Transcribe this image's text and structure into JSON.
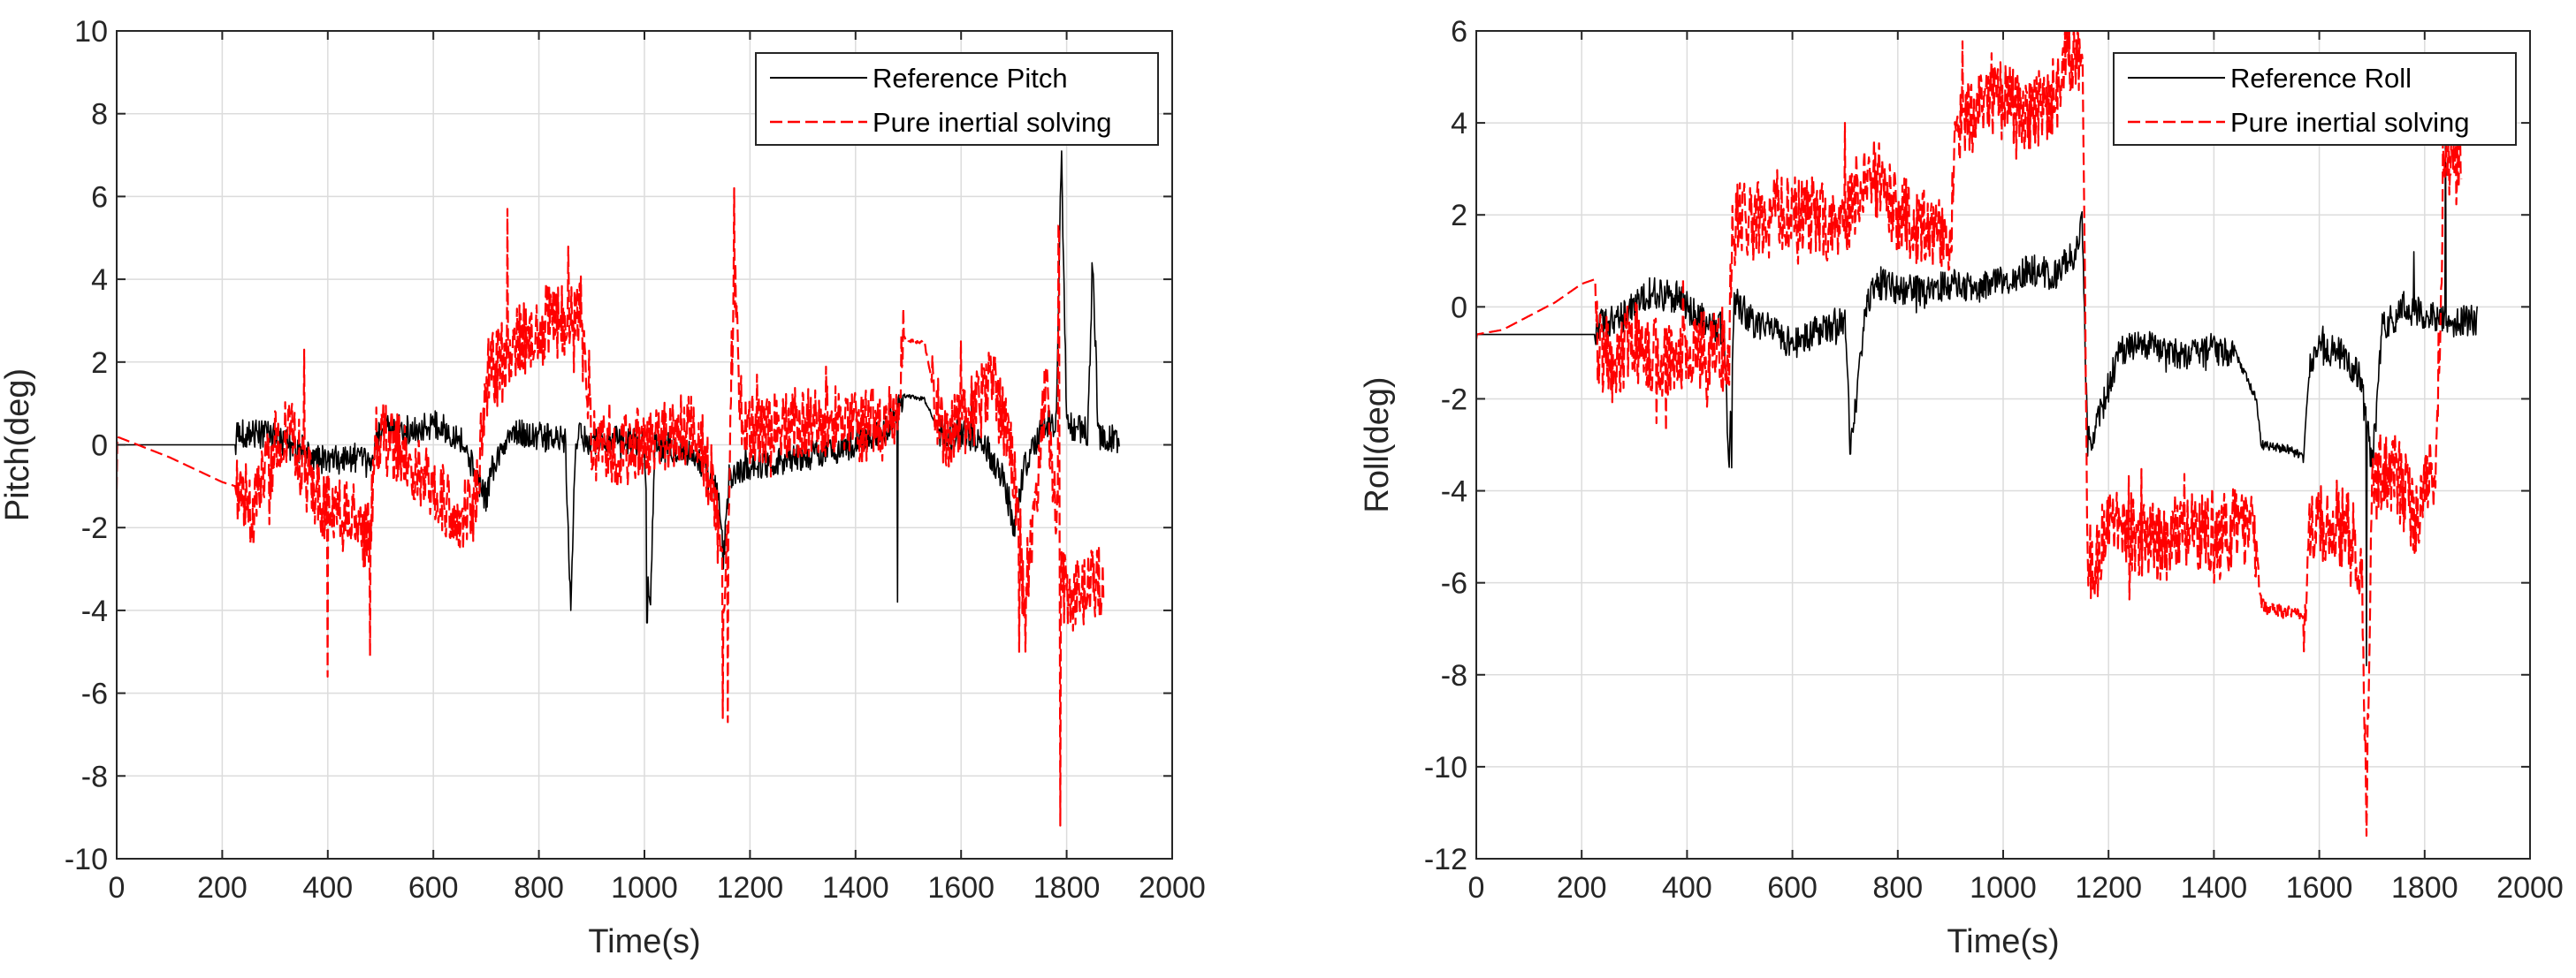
{
  "chart_data": [
    {
      "type": "line",
      "id": "pitch",
      "xlabel": "Time(s)",
      "ylabel": "Pitch(deg)",
      "xlim": [
        0,
        2000
      ],
      "ylim": [
        -10,
        10
      ],
      "xticks": [
        0,
        200,
        400,
        600,
        800,
        1000,
        1200,
        1400,
        1600,
        1800,
        2000
      ],
      "yticks": [
        -10,
        -8,
        -6,
        -4,
        -2,
        0,
        2,
        4,
        6,
        8,
        10
      ],
      "xtick_labels": [
        "0",
        "200",
        "400",
        "600",
        "800",
        "1000",
        "1200",
        "1400",
        "1600",
        "1800",
        "2000"
      ],
      "ytick_labels": [
        "-10",
        "-8",
        "-6",
        "-4",
        "-2",
        "0",
        "2",
        "4",
        "6",
        "8",
        "10"
      ],
      "grid": true,
      "legend_position": "top-right",
      "series": [
        {
          "name": "Reference Pitch",
          "color": "#000000",
          "style": "solid",
          "noise": 0.35,
          "x": [
            0,
            225,
            230,
            300,
            350,
            400,
            450,
            480,
            500,
            550,
            600,
            650,
            700,
            710,
            750,
            800,
            850,
            860,
            870,
            900,
            1000,
            1010,
            1020,
            1100,
            1140,
            1150,
            1160,
            1200,
            1300,
            1400,
            1460,
            1490,
            1530,
            1560,
            1600,
            1640,
            1680,
            1700,
            1720,
            1760,
            1780,
            1790,
            1800,
            1840,
            1850,
            1860,
            1900
          ],
          "y": [
            0,
            0,
            0.3,
            0.2,
            -0.2,
            -0.4,
            -0.3,
            -0.5,
            0.4,
            0.3,
            0.5,
            0.2,
            -1.3,
            -0.6,
            0.3,
            0.2,
            0.1,
            -4.0,
            0.2,
            0.1,
            0.1,
            -4.3,
            0.1,
            -0.3,
            -1.2,
            -2.8,
            -0.8,
            -0.5,
            -0.3,
            0.0,
            0.4,
            1.2,
            1.1,
            0.3,
            0.3,
            0.1,
            -0.8,
            -2.0,
            -0.5,
            0.5,
            0.5,
            7.1,
            0.5,
            0.3,
            4.4,
            0.2,
            0.1
          ],
          "spikes": [
            [
              860,
              -4.0
            ],
            [
              1005,
              -4.3
            ],
            [
              1150,
              -3.0
            ],
            [
              1480,
              -3.8
            ],
            [
              1790,
              7.1
            ],
            [
              1848,
              4.4
            ],
            [
              1620,
              1.6
            ]
          ]
        },
        {
          "name": "Pure inertial solving",
          "color": "#ff0000",
          "style": "dashed",
          "noise": 0.9,
          "x": [
            0,
            100,
            200,
            225,
            260,
            300,
            330,
            360,
            400,
            450,
            480,
            490,
            520,
            560,
            600,
            640,
            680,
            700,
            720,
            760,
            800,
            840,
            880,
            900,
            960,
            1000,
            1060,
            1100,
            1130,
            1150,
            1160,
            1170,
            1180,
            1200,
            1260,
            1300,
            1360,
            1400,
            1450,
            1480,
            1490,
            1500,
            1530,
            1560,
            1580,
            1620,
            1660,
            1700,
            1720,
            1740,
            1760,
            1790,
            1800,
            1840,
            1870
          ],
          "y": [
            0.2,
            -0.3,
            -0.9,
            -1.0,
            -1.6,
            -0.1,
            0.4,
            -0.9,
            -1.5,
            -1.8,
            -2.3,
            0.3,
            0.0,
            -0.5,
            -1.0,
            -1.8,
            -1.4,
            1.5,
            2.0,
            2.5,
            2.7,
            3.0,
            3.2,
            0.0,
            -0.2,
            0.1,
            0.3,
            0.3,
            -1.0,
            -3.5,
            -1.0,
            4.5,
            1.0,
            0.3,
            0.5,
            0.5,
            0.6,
            0.4,
            0.5,
            0.7,
            2.6,
            2.5,
            2.5,
            0.5,
            0.3,
            0.8,
            1.5,
            -0.5,
            -3.5,
            -2.0,
            1.5,
            -3.0,
            -3.8,
            -3.5,
            -3.2
          ],
          "spikes": [
            [
              400,
              -5.6
            ],
            [
              480,
              -5.1
            ],
            [
              355,
              2.3
            ],
            [
              740,
              5.7
            ],
            [
              1148,
              -6.6
            ],
            [
              1158,
              -6.7
            ],
            [
              1170,
              6.2
            ],
            [
              1490,
              3.3
            ],
            [
              1710,
              -5.0
            ],
            [
              1788,
              -9.2
            ],
            [
              1785,
              5.3
            ],
            [
              1600,
              2.5
            ]
          ]
        }
      ]
    },
    {
      "type": "line",
      "id": "roll",
      "xlabel": "Time(s)",
      "ylabel": "Roll(deg)",
      "xlim": [
        0,
        2000
      ],
      "ylim": [
        -12,
        6
      ],
      "xticks": [
        0,
        200,
        400,
        600,
        800,
        1000,
        1200,
        1400,
        1600,
        1800,
        2000
      ],
      "yticks": [
        -12,
        -10,
        -8,
        -6,
        -4,
        -2,
        0,
        2,
        4,
        6
      ],
      "xtick_labels": [
        "0",
        "200",
        "400",
        "600",
        "800",
        "1000",
        "1200",
        "1400",
        "1600",
        "1800",
        "2000"
      ],
      "ytick_labels": [
        "-12",
        "-10",
        "-8",
        "-6",
        "-4",
        "-2",
        "0",
        "2",
        "4",
        "6"
      ],
      "grid": true,
      "legend_position": "top-right",
      "series": [
        {
          "name": "Reference Roll",
          "color": "#000000",
          "style": "solid",
          "noise": 0.35,
          "x": [
            0,
            225,
            230,
            280,
            330,
            380,
            420,
            470,
            480,
            490,
            520,
            560,
            600,
            650,
            700,
            710,
            740,
            760,
            800,
            850,
            900,
            950,
            1000,
            1050,
            1100,
            1140,
            1150,
            1160,
            1180,
            1220,
            1260,
            1300,
            1350,
            1400,
            1440,
            1480,
            1490,
            1540,
            1560,
            1570,
            1580,
            1600,
            1640,
            1680,
            1700,
            1720,
            1760,
            1800,
            1830,
            1845,
            1860,
            1900
          ],
          "y": [
            -0.6,
            -0.6,
            -0.4,
            -0.2,
            0.3,
            0.2,
            -0.2,
            -0.5,
            -3.5,
            0.2,
            -0.3,
            -0.5,
            -0.8,
            -0.5,
            -0.3,
            -3.2,
            0.0,
            0.5,
            0.4,
            0.3,
            0.5,
            0.4,
            0.6,
            0.8,
            0.7,
            1.2,
            2.0,
            -3.0,
            -2.5,
            -1.0,
            -0.8,
            -0.9,
            -1.1,
            -0.9,
            -1.0,
            -2.0,
            -3.0,
            -3.1,
            -3.2,
            -3.3,
            -1.5,
            -0.9,
            -1.0,
            -1.5,
            -3.5,
            -0.5,
            0.0,
            -0.2,
            -0.3,
            -0.4,
            -0.3,
            -0.3
          ],
          "spikes": [
            [
              485,
              -3.5
            ],
            [
              710,
              -3.2
            ],
            [
              1148,
              2.0
            ],
            [
              1690,
              -7.8
            ],
            [
              1840,
              4.2
            ],
            [
              1780,
              1.2
            ]
          ]
        },
        {
          "name": "Pure inertial solving",
          "color": "#ff0000",
          "style": "dashed",
          "noise": 0.9,
          "x": [
            0,
            50,
            100,
            150,
            200,
            225,
            230,
            260,
            300,
            350,
            400,
            440,
            480,
            485,
            520,
            560,
            600,
            640,
            680,
            700,
            720,
            760,
            800,
            840,
            880,
            900,
            910,
            950,
            1000,
            1050,
            1100,
            1130,
            1150,
            1160,
            1170,
            1200,
            1250,
            1300,
            1350,
            1400,
            1450,
            1480,
            1490,
            1520,
            1560,
            1570,
            1580,
            1620,
            1660,
            1680,
            1690,
            1700,
            1740,
            1780,
            1820,
            1840,
            1850,
            1870
          ],
          "y": [
            -0.6,
            -0.5,
            -0.2,
            0.1,
            0.5,
            0.6,
            -1.0,
            -1.2,
            -0.8,
            -1.2,
            -1.0,
            -1.0,
            -0.8,
            1.8,
            1.8,
            1.9,
            2.0,
            2.0,
            1.8,
            2.0,
            2.5,
            2.8,
            2.0,
            1.8,
            1.5,
            1.5,
            4.0,
            4.2,
            4.5,
            4.3,
            4.6,
            5.5,
            5.5,
            -5.0,
            -6.0,
            -4.5,
            -5.0,
            -5.2,
            -4.8,
            -5.0,
            -4.8,
            -5.0,
            -6.5,
            -6.6,
            -6.7,
            -6.8,
            -5.0,
            -4.5,
            -5.0,
            -5.5,
            -11.0,
            -4.0,
            -3.5,
            -4.5,
            -3.5,
            3.5,
            3.2,
            3.1
          ],
          "spikes": [
            [
              360,
              -2.7
            ],
            [
              700,
              4.0
            ],
            [
              1690,
              -11.5
            ],
            [
              1120,
              6.0
            ],
            [
              1400,
              -6.0
            ],
            [
              1835,
              3.8
            ]
          ]
        }
      ]
    }
  ]
}
